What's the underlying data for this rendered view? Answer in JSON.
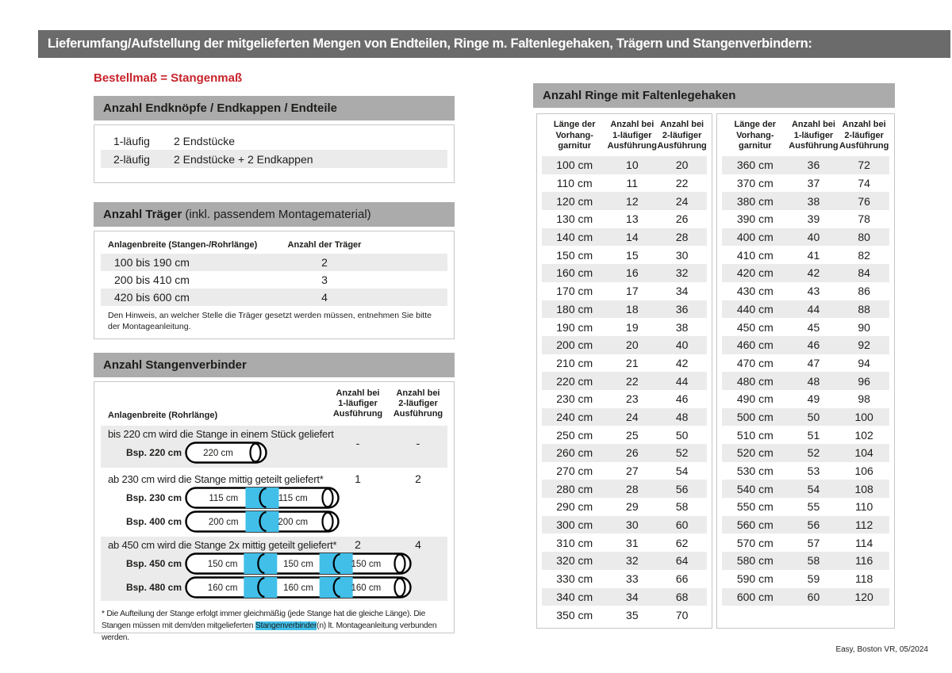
{
  "page": {
    "title": "Lieferumfang/Aufstellung der mitgelieferten Mengen von Endteilen, Ringe m. Faltenlegehaken, Trägern und Stangenverbindern:",
    "subtitle": "Bestellmaß = Stangenmaß",
    "footer": "Easy, Boston VR, 05/2024"
  },
  "colors": {
    "title_bar": "#6B6B6B",
    "section_bar": "#ABABAB",
    "row_shade": "#EBEBEB",
    "accent_red": "#C8232B",
    "connector_cyan": "#41BFE9"
  },
  "end_pieces": {
    "header": "Anzahl Endknöpfe / Endkappen / Endteile",
    "rows": [
      {
        "label": "1-läufig",
        "value": "2 Endstücke"
      },
      {
        "label": "2-läufig",
        "value": "2 Endstücke + 2 Endkappen"
      }
    ]
  },
  "traeger": {
    "header_bold": "Anzahl Träger",
    "header_rest": " (inkl. passendem Montagematerial)",
    "col1": "Anlagenbreite (Stangen-/Rohrlänge)",
    "col2": "Anzahl der Träger",
    "rows": [
      {
        "label": "100 bis 190 cm",
        "value": "2"
      },
      {
        "label": "200 bis 410 cm",
        "value": "3"
      },
      {
        "label": "420 bis 600 cm",
        "value": "4"
      }
    ],
    "note": "Den Hinweis, an welcher Stelle die Träger gesetzt werden müssen, entnehmen Sie bitte der Montageanleitung."
  },
  "verbinder": {
    "header": "Anzahl Stangenverbinder",
    "col_label": "Anlagenbreite (Rohrlänge)",
    "col1": [
      "Anzahl bei",
      "1-läufiger",
      "Ausführung"
    ],
    "col2": [
      "Anzahl bei",
      "2-läufiger",
      "Ausführung"
    ],
    "blocks": [
      {
        "text": "bis 220 cm wird die Stange in einem Stück geliefert",
        "v1": "-",
        "v2": "-",
        "examples": [
          {
            "label": "Bsp. 220 cm",
            "segments": [
              "220 cm"
            ]
          }
        ]
      },
      {
        "text": "ab 230 cm wird die Stange mittig geteilt geliefert*",
        "v1": "1",
        "v2": "2",
        "examples": [
          {
            "label": "Bsp. 230 cm",
            "segments": [
              "115 cm",
              "115 cm"
            ]
          },
          {
            "label": "Bsp. 400 cm",
            "segments": [
              "200 cm",
              "200 cm"
            ]
          }
        ]
      },
      {
        "text": "ab 450 cm wird die Stange 2x mittig geteilt geliefert*",
        "v1": "2",
        "v2": "4",
        "examples": [
          {
            "label": "Bsp. 450 cm",
            "segments": [
              "150 cm",
              "150 cm",
              "150 cm"
            ]
          },
          {
            "label": "Bsp. 480 cm",
            "segments": [
              "160 cm",
              "160 cm",
              "160 cm"
            ]
          }
        ]
      }
    ],
    "footnote_pre": "* Die Aufteilung der Stange erfolgt immer gleichmäßig (jede Stange hat die gleiche Länge). Die Stangen müssen mit dem/den mitgelieferten ",
    "footnote_highlight": "Stangenverbinder",
    "footnote_post": "(n) lt. Montageanleitung verbunden werden."
  },
  "ringe": {
    "header": "Anzahl Ringe mit Faltenlegehaken",
    "col_headers": [
      [
        "Länge der",
        "Vorhang-",
        "garnitur"
      ],
      [
        "Anzahl bei",
        "1-läufiger",
        "Ausführung"
      ],
      [
        "Anzahl bei",
        "2-läufiger",
        "Ausführung"
      ]
    ],
    "table_left": [
      [
        "100 cm",
        "10",
        "20"
      ],
      [
        "110 cm",
        "11",
        "22"
      ],
      [
        "120 cm",
        "12",
        "24"
      ],
      [
        "130 cm",
        "13",
        "26"
      ],
      [
        "140 cm",
        "14",
        "28"
      ],
      [
        "150 cm",
        "15",
        "30"
      ],
      [
        "160 cm",
        "16",
        "32"
      ],
      [
        "170 cm",
        "17",
        "34"
      ],
      [
        "180 cm",
        "18",
        "36"
      ],
      [
        "190 cm",
        "19",
        "38"
      ],
      [
        "200 cm",
        "20",
        "40"
      ],
      [
        "210 cm",
        "21",
        "42"
      ],
      [
        "220 cm",
        "22",
        "44"
      ],
      [
        "230 cm",
        "23",
        "46"
      ],
      [
        "240 cm",
        "24",
        "48"
      ],
      [
        "250 cm",
        "25",
        "50"
      ],
      [
        "260 cm",
        "26",
        "52"
      ],
      [
        "270 cm",
        "27",
        "54"
      ],
      [
        "280 cm",
        "28",
        "56"
      ],
      [
        "290 cm",
        "29",
        "58"
      ],
      [
        "300 cm",
        "30",
        "60"
      ],
      [
        "310 cm",
        "31",
        "62"
      ],
      [
        "320 cm",
        "32",
        "64"
      ],
      [
        "330 cm",
        "33",
        "66"
      ],
      [
        "340 cm",
        "34",
        "68"
      ],
      [
        "350 cm",
        "35",
        "70"
      ]
    ],
    "table_right": [
      [
        "360 cm",
        "36",
        "72"
      ],
      [
        "370 cm",
        "37",
        "74"
      ],
      [
        "380 cm",
        "38",
        "76"
      ],
      [
        "390 cm",
        "39",
        "78"
      ],
      [
        "400 cm",
        "40",
        "80"
      ],
      [
        "410 cm",
        "41",
        "82"
      ],
      [
        "420 cm",
        "42",
        "84"
      ],
      [
        "430 cm",
        "43",
        "86"
      ],
      [
        "440 cm",
        "44",
        "88"
      ],
      [
        "450 cm",
        "45",
        "90"
      ],
      [
        "460 cm",
        "46",
        "92"
      ],
      [
        "470 cm",
        "47",
        "94"
      ],
      [
        "480 cm",
        "48",
        "96"
      ],
      [
        "490 cm",
        "49",
        "98"
      ],
      [
        "500 cm",
        "50",
        "100"
      ],
      [
        "510 cm",
        "51",
        "102"
      ],
      [
        "520 cm",
        "52",
        "104"
      ],
      [
        "530 cm",
        "53",
        "106"
      ],
      [
        "540 cm",
        "54",
        "108"
      ],
      [
        "550 cm",
        "55",
        "110"
      ],
      [
        "560 cm",
        "56",
        "112"
      ],
      [
        "570 cm",
        "57",
        "114"
      ],
      [
        "580 cm",
        "58",
        "116"
      ],
      [
        "590 cm",
        "59",
        "118"
      ],
      [
        "600 cm",
        "60",
        "120"
      ]
    ]
  }
}
